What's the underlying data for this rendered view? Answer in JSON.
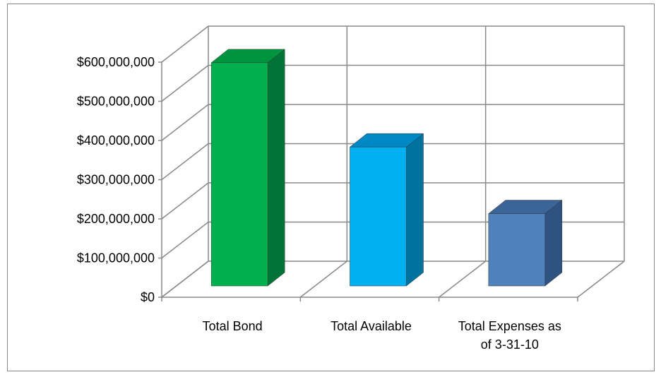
{
  "chart_data": {
    "type": "bar",
    "style": "3d-column",
    "categories": [
      "Total Bond",
      "Total Available",
      "Total Expenses as of 3-31-10"
    ],
    "category_label_lines": [
      [
        "Total Bond"
      ],
      [
        "Total Available"
      ],
      [
        "Total Expenses as",
        "of 3-31-10"
      ]
    ],
    "values": [
      600000000,
      385000000,
      215000000
    ],
    "ylim": [
      0,
      600000000
    ],
    "y_ticks": [
      0,
      100000000,
      200000000,
      300000000,
      400000000,
      500000000,
      600000000
    ],
    "y_tick_labels": [
      "$0",
      "$100,000,000",
      "$200,000,000",
      "$300,000,000",
      "$400,000,000",
      "$500,000,000",
      "$600,000,000"
    ],
    "grid": true,
    "legend": "none",
    "colors": [
      {
        "front": "#00B04F",
        "side": "#007436",
        "top": "#00943F"
      },
      {
        "front": "#00B0F0",
        "side": "#0072A0",
        "top": "#0088C4"
      },
      {
        "front": "#4F81BD",
        "side": "#2F5381",
        "top": "#3B6599"
      }
    ],
    "grid_color": "#888888",
    "border_color": "#868686"
  }
}
